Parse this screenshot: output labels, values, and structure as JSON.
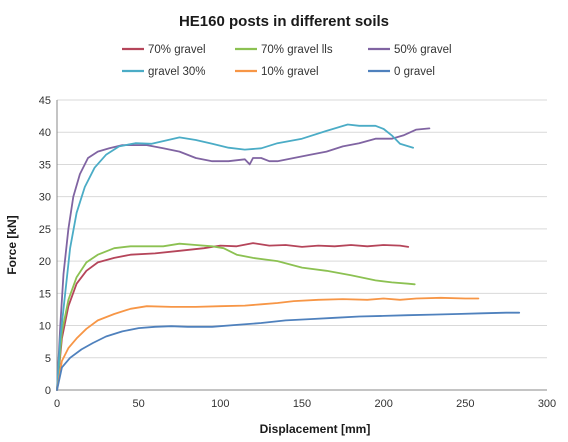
{
  "chart_data": {
    "type": "line",
    "title": "HE160 posts in different soils",
    "xlabel": "Displacement [mm]",
    "ylabel": "Force [kN]",
    "xlim": [
      0,
      300
    ],
    "ylim": [
      0,
      45
    ],
    "x_ticks": [
      0,
      50,
      100,
      150,
      200,
      250,
      300
    ],
    "y_ticks": [
      0,
      5,
      10,
      15,
      20,
      25,
      30,
      35,
      40,
      45
    ],
    "grid": "horizontal",
    "legend_position": "top",
    "series": [
      {
        "name": "70% gravel",
        "color": "#b5455a",
        "points": [
          [
            0,
            0
          ],
          [
            3,
            8
          ],
          [
            7,
            13
          ],
          [
            12,
            16.5
          ],
          [
            18,
            18.5
          ],
          [
            25,
            19.8
          ],
          [
            35,
            20.5
          ],
          [
            45,
            21
          ],
          [
            60,
            21.2
          ],
          [
            75,
            21.6
          ],
          [
            90,
            22
          ],
          [
            100,
            22.4
          ],
          [
            110,
            22.3
          ],
          [
            120,
            22.8
          ],
          [
            130,
            22.4
          ],
          [
            140,
            22.5
          ],
          [
            150,
            22.2
          ],
          [
            160,
            22.4
          ],
          [
            170,
            22.3
          ],
          [
            180,
            22.5
          ],
          [
            190,
            22.3
          ],
          [
            200,
            22.5
          ],
          [
            210,
            22.4
          ],
          [
            215,
            22.2
          ]
        ]
      },
      {
        "name": "70% gravel lls",
        "color": "#8cc152",
        "points": [
          [
            0,
            0
          ],
          [
            3,
            9
          ],
          [
            7,
            14
          ],
          [
            12,
            17.5
          ],
          [
            18,
            19.8
          ],
          [
            25,
            21
          ],
          [
            35,
            22
          ],
          [
            45,
            22.3
          ],
          [
            55,
            22.3
          ],
          [
            65,
            22.3
          ],
          [
            75,
            22.7
          ],
          [
            85,
            22.5
          ],
          [
            95,
            22.3
          ],
          [
            102,
            22
          ],
          [
            110,
            21
          ],
          [
            120,
            20.5
          ],
          [
            135,
            20
          ],
          [
            150,
            19
          ],
          [
            165,
            18.5
          ],
          [
            180,
            17.8
          ],
          [
            195,
            17
          ],
          [
            205,
            16.7
          ],
          [
            215,
            16.5
          ],
          [
            219,
            16.4
          ]
        ]
      },
      {
        "name": "50% gravel",
        "color": "#8064a2",
        "points": [
          [
            0,
            0
          ],
          [
            2,
            10
          ],
          [
            4,
            18
          ],
          [
            7,
            25
          ],
          [
            10,
            30
          ],
          [
            14,
            33.5
          ],
          [
            19,
            36
          ],
          [
            25,
            37
          ],
          [
            32,
            37.5
          ],
          [
            40,
            38
          ],
          [
            48,
            38
          ],
          [
            55,
            38
          ],
          [
            65,
            37.5
          ],
          [
            75,
            37
          ],
          [
            85,
            36
          ],
          [
            95,
            35.5
          ],
          [
            105,
            35.5
          ],
          [
            115,
            35.8
          ],
          [
            118,
            35
          ],
          [
            120,
            36
          ],
          [
            125,
            36
          ],
          [
            130,
            35.5
          ],
          [
            135,
            35.5
          ],
          [
            145,
            36
          ],
          [
            155,
            36.5
          ],
          [
            165,
            37
          ],
          [
            175,
            37.8
          ],
          [
            185,
            38.3
          ],
          [
            195,
            39
          ],
          [
            205,
            39
          ],
          [
            212,
            39.5
          ],
          [
            220,
            40.4
          ],
          [
            228,
            40.6
          ]
        ]
      },
      {
        "name": "gravel 30%",
        "color": "#4bacc6",
        "points": [
          [
            0,
            0
          ],
          [
            2,
            8
          ],
          [
            5,
            15
          ],
          [
            8,
            22
          ],
          [
            12,
            27.5
          ],
          [
            17,
            31.5
          ],
          [
            23,
            34.5
          ],
          [
            30,
            36.5
          ],
          [
            38,
            37.8
          ],
          [
            48,
            38.3
          ],
          [
            58,
            38.2
          ],
          [
            68,
            38.8
          ],
          [
            75,
            39.2
          ],
          [
            85,
            38.8
          ],
          [
            95,
            38.2
          ],
          [
            105,
            37.6
          ],
          [
            115,
            37.3
          ],
          [
            125,
            37.5
          ],
          [
            135,
            38.3
          ],
          [
            150,
            39
          ],
          [
            165,
            40.2
          ],
          [
            178,
            41.2
          ],
          [
            185,
            41
          ],
          [
            195,
            41
          ],
          [
            200,
            40.5
          ],
          [
            205,
            39.5
          ],
          [
            210,
            38.2
          ],
          [
            218,
            37.6
          ]
        ]
      },
      {
        "name": "10% gravel",
        "color": "#f79646",
        "points": [
          [
            0,
            0
          ],
          [
            3,
            4.5
          ],
          [
            7,
            6.5
          ],
          [
            12,
            8
          ],
          [
            18,
            9.5
          ],
          [
            25,
            10.8
          ],
          [
            35,
            11.8
          ],
          [
            45,
            12.6
          ],
          [
            55,
            13
          ],
          [
            70,
            12.9
          ],
          [
            85,
            12.9
          ],
          [
            100,
            13
          ],
          [
            115,
            13.1
          ],
          [
            125,
            13.3
          ],
          [
            135,
            13.5
          ],
          [
            145,
            13.8
          ],
          [
            160,
            14
          ],
          [
            175,
            14.1
          ],
          [
            190,
            14
          ],
          [
            200,
            14.2
          ],
          [
            210,
            14
          ],
          [
            220,
            14.2
          ],
          [
            235,
            14.3
          ],
          [
            250,
            14.2
          ],
          [
            258,
            14.2
          ]
        ]
      },
      {
        "name": "0 gravel",
        "color": "#4f81bd",
        "points": [
          [
            0,
            0
          ],
          [
            3,
            3.5
          ],
          [
            8,
            5
          ],
          [
            15,
            6.3
          ],
          [
            22,
            7.3
          ],
          [
            30,
            8.3
          ],
          [
            40,
            9.1
          ],
          [
            50,
            9.6
          ],
          [
            60,
            9.8
          ],
          [
            70,
            9.9
          ],
          [
            80,
            9.8
          ],
          [
            95,
            9.8
          ],
          [
            110,
            10.1
          ],
          [
            125,
            10.4
          ],
          [
            140,
            10.8
          ],
          [
            155,
            11
          ],
          [
            170,
            11.2
          ],
          [
            185,
            11.4
          ],
          [
            200,
            11.5
          ],
          [
            215,
            11.6
          ],
          [
            230,
            11.7
          ],
          [
            245,
            11.8
          ],
          [
            260,
            11.9
          ],
          [
            275,
            12
          ],
          [
            283,
            12
          ]
        ]
      }
    ]
  }
}
